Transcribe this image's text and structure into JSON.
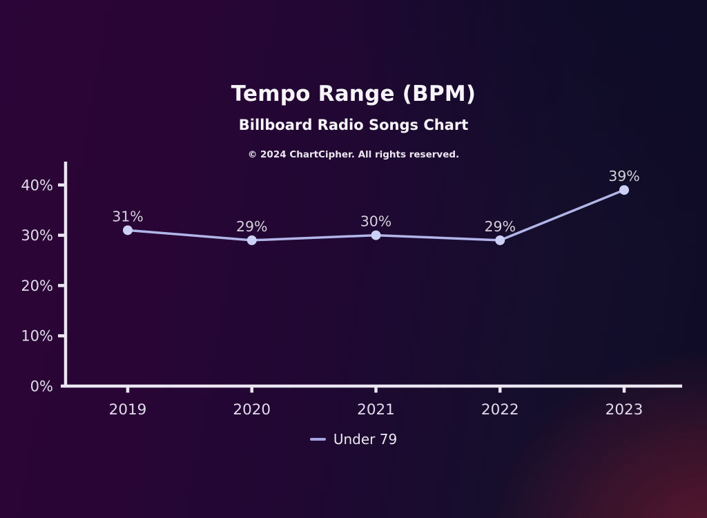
{
  "header": {
    "title": "Tempo Range (BPM)",
    "subtitle": "Billboard Radio Songs Chart",
    "copyright": "© 2024 ChartCipher. All rights reserved."
  },
  "legend": {
    "items": [
      {
        "label": "Under 79",
        "color": "#a3a4e0"
      }
    ]
  },
  "colors": {
    "background_left": "#2a0536",
    "background_right": "#0d0b26",
    "background_glow": "#962134",
    "axis": "#eae6f2",
    "line": "#b2b5e8",
    "point": "#ccd0f4",
    "tick_label": "#e2dbec",
    "data_label": "#d6cfdc",
    "title_text": "#f7f5fa"
  },
  "chart_data": {
    "type": "line",
    "title": "Tempo Range (BPM)",
    "subtitle": "Billboard Radio Songs Chart",
    "categories": [
      "2019",
      "2020",
      "2021",
      "2022",
      "2023"
    ],
    "series": [
      {
        "name": "Under 79",
        "values": [
          31,
          29,
          30,
          29,
          39
        ]
      }
    ],
    "value_suffix": "%",
    "yticks": [
      0,
      10,
      20,
      30,
      40
    ],
    "ylim": [
      0,
      45
    ],
    "xlabel": "",
    "ylabel": "",
    "grid": false,
    "legend_position": "bottom"
  }
}
